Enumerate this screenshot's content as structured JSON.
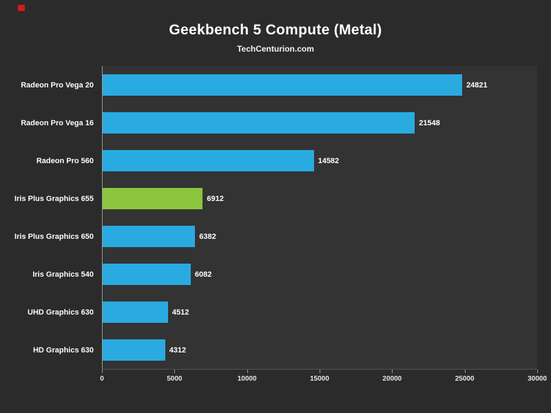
{
  "header": {
    "title": "Geekbench 5 Compute (Metal)",
    "subtitle": "TechCenturion.com"
  },
  "colors": {
    "page_background": "#2b2b2b",
    "plot_background": "#333333",
    "bar_default": "#29ABE2",
    "bar_highlight": "#8CC63F",
    "axis_line": "#9a9a9a",
    "text": "#ffffff"
  },
  "chart_data": {
    "type": "bar",
    "orientation": "horizontal",
    "title": "Geekbench 5 Compute (Metal)",
    "subtitle": "TechCenturion.com",
    "categories": [
      "Radeon Pro Vega 20",
      "Radeon Pro Vega 16",
      "Radeon Pro 560",
      "Iris Plus Graphics 655",
      "Iris Plus Graphics 650",
      "Iris Graphics 540",
      "UHD Graphics 630",
      "HD Graphics 630"
    ],
    "values": [
      24821,
      21548,
      14582,
      6912,
      6382,
      6082,
      4512,
      4312
    ],
    "value_labels": [
      "24821",
      "21548",
      "14582",
      "6912",
      "6382",
      "6082",
      "4512",
      "4312"
    ],
    "bar_colors": [
      "#29ABE2",
      "#29ABE2",
      "#29ABE2",
      "#8CC63F",
      "#29ABE2",
      "#29ABE2",
      "#29ABE2",
      "#29ABE2"
    ],
    "xlabel": "",
    "ylabel": "",
    "xlim": [
      0,
      30000
    ],
    "x_ticks": [
      0,
      5000,
      10000,
      15000,
      20000,
      25000,
      30000
    ],
    "x_tick_labels": [
      "0",
      "5000",
      "10000",
      "15000",
      "20000",
      "25000",
      "30000"
    ],
    "grid": false,
    "legend": false
  }
}
